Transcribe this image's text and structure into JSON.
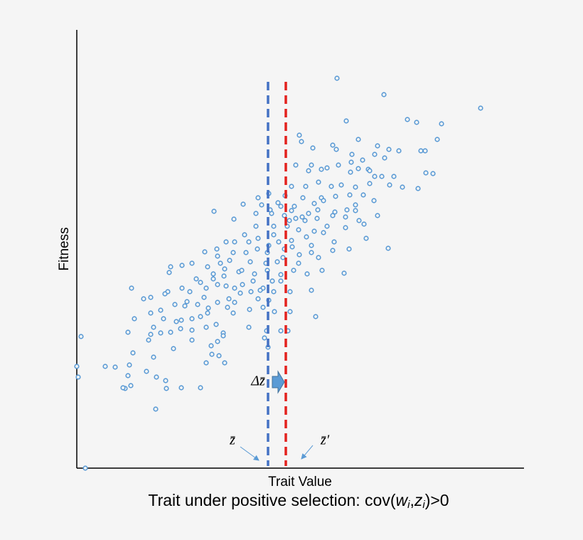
{
  "chart_data": {
    "type": "scatter",
    "title": [
      "Trait under positive selection: cov(",
      "w",
      "i",
      ",",
      "z",
      "i",
      ")>0"
    ],
    "x_label": "Trait Value",
    "y_label": "Fitness",
    "xlim": [
      0,
      629
    ],
    "ylim": [
      0,
      616
    ],
    "series": [
      {
        "color": "#5b9bd5",
        "x": [
          366,
          432,
          568,
          379,
          465,
          478,
          513,
          313,
          507,
          316,
          396,
          360,
          332,
          365,
          423,
          439,
          453,
          484,
          490,
          387,
          419,
          308,
          330,
          344,
          352,
          368,
          386,
          396,
          410,
          433,
          491,
          501,
          429,
          446,
          458,
          480,
          440,
          412,
          392,
          358,
          340,
          322,
          302,
          270,
          255,
          293,
          318,
          344,
          364,
          384,
          403,
          418,
          392,
          380,
          363,
          339,
          326,
          306,
          283,
          260,
          234,
          221,
          193,
          252,
          274,
          292,
          308,
          321,
          338,
          360,
          378,
          397,
          423,
          404,
          378,
          352,
          334,
          312,
          296,
          277,
          252,
          236,
          222,
          210,
          197,
          180,
          162,
          148,
          132,
          130,
          184,
          202,
          220,
          238,
          254,
          270,
          284,
          302,
          323,
          347,
          362,
          383,
          407,
          438,
          330,
          313,
          290,
          266,
          244,
          228,
          207,
          192,
          182,
          174,
          159,
          148,
          128,
          124,
          104,
          94,
          77,
          81,
          104,
          118,
          138,
          152,
          170,
          185,
          198,
          214,
          230,
          245,
          262,
          277,
          300,
          330,
          376,
          345,
          324,
          305,
          287,
          268,
          250,
          233,
          222,
          210,
          198,
          174,
          162,
          147,
          140,
          122,
          108,
          104,
          101,
          118,
          132,
          146,
          162,
          182,
          196,
          206,
          220,
          243,
          262,
          278,
          300,
          336,
          287,
          297,
          267,
          264,
          242,
          206,
          198,
          189,
          162,
          136,
          108,
          79,
          72,
          6,
          40,
          54,
          74,
          72,
          98,
          112,
          125,
          147,
          174,
          126,
          68,
          76,
          65,
          111,
          0,
          2,
          12,
          208,
          190,
          182,
          200,
          269,
          277,
          268,
          282,
          292,
          303,
          272,
          287,
          242,
          215,
          192,
          198,
          232,
          248,
          255,
          270,
          287,
          312,
          340,
          360,
          392,
          412,
          419,
          347,
          326,
          299,
          275,
          258,
          222,
          212,
          184,
          168,
          155,
          179,
          208,
          255,
          334,
          372,
          385,
          402,
          317,
          302,
          330
        ],
        "y": [
          548,
          525,
          506,
          488,
          490,
          486,
          484,
          468,
          462,
          459,
          462,
          454,
          450,
          448,
          453,
          448,
          446,
          446,
          446,
          441,
          441,
          426,
          426,
          420,
          422,
          426,
          430,
          421,
          420,
          436,
          415,
          414,
          410,
          410,
          395,
          393,
          398,
          400,
          395,
          396,
          402,
          396,
          396,
          386,
          380,
          383,
          380,
          380,
          382,
          384,
          384,
          376,
          370,
          363,
          360,
          363,
          358,
          368,
          373,
          370,
          371,
          350,
          361,
          358,
          358,
          355,
          351,
          348,
          351,
          355,
          353,
          348,
          355,
          343,
          338,
          340,
          333,
          335,
          340,
          340,
          340,
          328,
          318,
          318,
          308,
          304,
          288,
          285,
          283,
          275,
          283,
          288,
          303,
          303,
          308,
          313,
          318,
          320,
          325,
          331,
          318,
          308,
          323,
          309,
          303,
          300,
          296,
          288,
          290,
          276,
          270,
          266,
          253,
          261,
          248,
          253,
          248,
          245,
          240,
          238,
          253,
          210,
          218,
          222,
          230,
          228,
          230,
          225,
          233,
          238,
          246,
          248,
          253,
          248,
          248,
          250,
          274,
          278,
          273,
          278,
          272,
          278,
          273,
          258,
          253,
          256,
          258,
          213,
          210,
          208,
          206,
          210,
          198,
          188,
          180,
          190,
          191,
          196,
          194,
          198,
          202,
          190,
          218,
          223,
          226,
          220,
          220,
          213,
          193,
          193,
          193,
          183,
          198,
          186,
          178,
          172,
          180,
          168,
          156,
          162,
          191,
          185,
          143,
          142,
          145,
          130,
          136,
          128,
          123,
          113,
          113,
          112,
          112,
          116,
          113,
          83,
          143,
          128,
          0,
          148,
          160,
          148,
          158,
          170,
          328,
          303,
          290,
          308,
          311,
          363,
          368,
          318,
          292,
          273,
          298,
          278,
          263,
          238,
          236,
          263,
          288,
          296,
          306,
          362,
          418,
          410,
          376,
          418,
          348,
          263,
          250,
          233,
          226,
          218,
          266,
          234,
          240,
          280,
          323,
          372,
          398,
          416,
          433,
          353,
          362,
          313
        ]
      }
    ],
    "mean_lines": [
      {
        "value": 269,
        "color": "#4472c4",
        "label": "z̄"
      },
      {
        "value": 294,
        "color": "#e3221e",
        "label": "z̄′"
      }
    ],
    "shift_label": "Δz̄"
  }
}
